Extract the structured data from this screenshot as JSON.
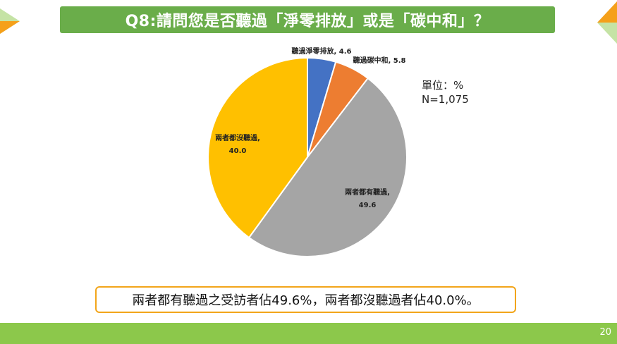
{
  "title": "Q8:請問您是否聽過「淨零排放」或是「碳中和」？",
  "unit_label": "單位：%",
  "sample_label": "N=1,075",
  "conclusion": "兩者都有聽過之受訪者佔49.6%，兩者都沒聽過者佔40.0%。",
  "page_number": "20",
  "colors": {
    "title_bg": "#6aad4a",
    "footer_bg": "#8cc84b",
    "conclusion_border": "#f2a51a",
    "corner_orange": "#f5a01a",
    "corner_green": "#8cc84b"
  },
  "chart_data": {
    "type": "pie",
    "title": "",
    "slices": [
      {
        "label": "聽過淨零排放",
        "value": 4.6,
        "color": "#4472c4",
        "label_text": [
          "聽過淨零排放, 4.6"
        ]
      },
      {
        "label": "聽過碳中和",
        "value": 5.8,
        "color": "#ed7d31",
        "label_text": [
          "聽過碳中和, 5.8"
        ]
      },
      {
        "label": "兩者都有聽過",
        "value": 49.6,
        "color": "#a5a5a5",
        "label_text": [
          "兩者都有聽過,",
          "49.6"
        ]
      },
      {
        "label": "兩者都沒聽過",
        "value": 40.0,
        "color": "#ffc000",
        "label_text": [
          "兩者都沒聽過,",
          "40.0"
        ]
      }
    ]
  }
}
